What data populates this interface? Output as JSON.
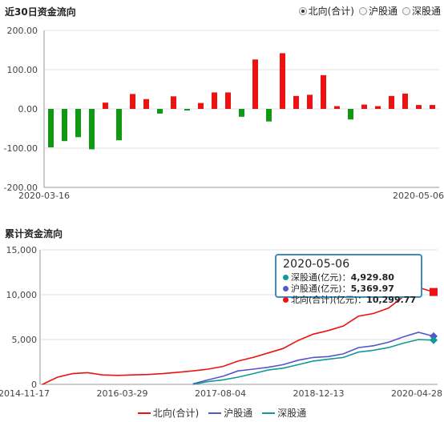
{
  "top": {
    "title": "近30日资金流向",
    "options": [
      {
        "label": "北向(合计)",
        "selected": true
      },
      {
        "label": "沪股通",
        "selected": false
      },
      {
        "label": "深股通",
        "selected": false
      }
    ]
  },
  "bottom": {
    "title": "累计资金流向"
  },
  "colors": {
    "red": "#ee1111",
    "green": "#119911",
    "blue": "#5555cc",
    "teal": "#119999",
    "grid": "#e2e2e2"
  },
  "chart_data": [
    {
      "type": "bar",
      "title": "近30日资金流向",
      "yticks": [
        "200.00",
        "100.00",
        "0.00",
        "-100.00",
        "-200.00"
      ],
      "ylim": [
        -200,
        200
      ],
      "x_start_label": "2020-03-16",
      "x_end_label": "2020-05-06",
      "values": [
        -98,
        -82,
        -72,
        -103,
        16,
        -80,
        38,
        25,
        -12,
        32,
        -4,
        15,
        42,
        42,
        -20,
        126,
        -32,
        142,
        33,
        36,
        86,
        7,
        -27,
        11,
        7,
        33,
        39,
        10,
        10
      ]
    },
    {
      "type": "line",
      "title": "累计资金流向",
      "ylim": [
        0,
        15000
      ],
      "yticks": [
        "15,000",
        "10,000",
        "5,000",
        "0"
      ],
      "xticks": [
        "2014-11-17",
        "2016-03-29",
        "2017-08-04",
        "2018-12-13",
        "2020-04-28"
      ],
      "series": [
        {
          "name": "北向(合计)",
          "color_key": "red",
          "values": [
            0,
            800,
            1200,
            1300,
            1050,
            1000,
            1050,
            1100,
            1200,
            1350,
            1500,
            1700,
            2000,
            2600,
            3000,
            3500,
            4000,
            4900,
            5600,
            6000,
            6500,
            7600,
            7900,
            8500,
            9800,
            10800,
            10299.77
          ]
        },
        {
          "name": "沪股通",
          "color_key": "blue",
          "values": [
            null,
            null,
            null,
            null,
            null,
            null,
            null,
            null,
            null,
            null,
            50,
            500,
            900,
            1500,
            1700,
            1900,
            2200,
            2700,
            3000,
            3100,
            3400,
            4100,
            4300,
            4700,
            5300,
            5800,
            5369.97
          ]
        },
        {
          "name": "深股通",
          "color_key": "teal",
          "values": [
            null,
            null,
            null,
            null,
            null,
            null,
            null,
            null,
            null,
            null,
            0,
            300,
            500,
            800,
            1200,
            1600,
            1800,
            2200,
            2600,
            2800,
            3000,
            3600,
            3800,
            4100,
            4600,
            5000,
            4929.8
          ]
        }
      ]
    }
  ],
  "tooltip": {
    "date": "2020-05-06",
    "rows": [
      {
        "label": "深股通(亿元)：",
        "value": "4,929.80",
        "color_key": "teal"
      },
      {
        "label": "沪股通(亿元)：",
        "value": "5,369.97",
        "color_key": "blue"
      },
      {
        "label": "北向(合计)(亿元)：",
        "value": "10,299.77",
        "color_key": "red"
      }
    ]
  },
  "legend": [
    "北向(合计)",
    "沪股通",
    "深股通"
  ]
}
